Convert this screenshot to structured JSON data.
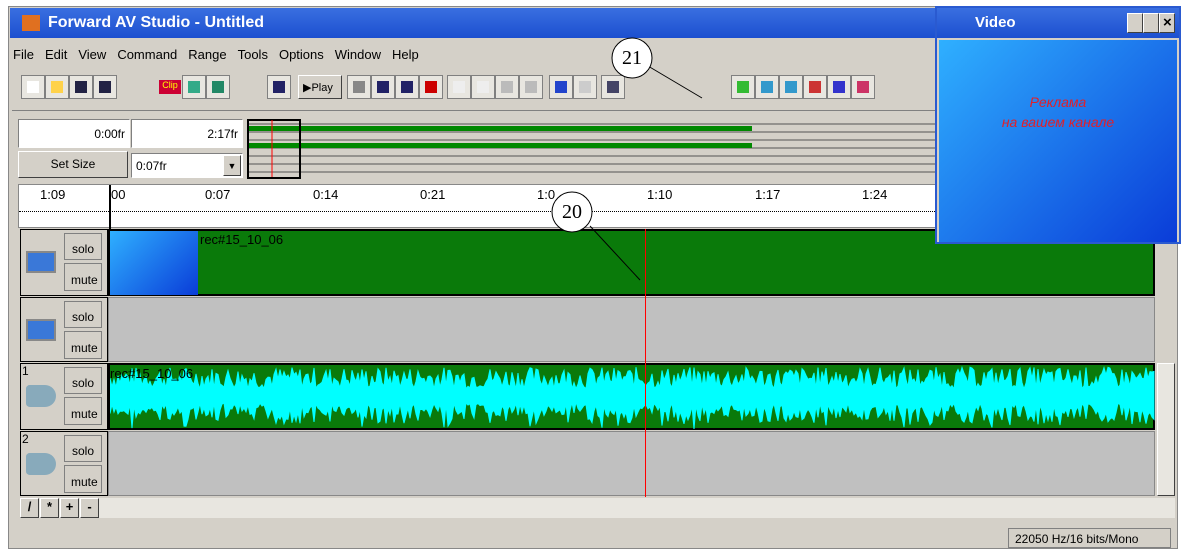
{
  "window": {
    "title": "Forward AV Studio - Untitled"
  },
  "menu": [
    "File",
    "Edit",
    "View",
    "Command",
    "Range",
    "Tools",
    "Options",
    "Window",
    "Help"
  ],
  "toolbar": {
    "clip": "Clip",
    "play": "Play"
  },
  "callouts": [
    "21",
    "20"
  ],
  "range": {
    "start": "0:00fr",
    "end": "2:17fr",
    "set_size": "Set Size",
    "size": "0:07fr"
  },
  "ruler": {
    "left": "1:09",
    "ticks": [
      "00",
      "0:07",
      "0:14",
      "0:21",
      "1:0",
      "1:10",
      "1:17",
      "1:24"
    ]
  },
  "tracks": [
    {
      "solo": "solo",
      "mute": "mute",
      "clip": "rec#15_10_06"
    },
    {
      "solo": "solo",
      "mute": "mute"
    },
    {
      "number": "1",
      "solo": "solo",
      "mute": "mute",
      "clip": "rec#15_10_06"
    },
    {
      "number": "2",
      "solo": "solo",
      "mute": "mute"
    }
  ],
  "track_buttons": [
    "/",
    "*",
    "+",
    "-"
  ],
  "status": "22050 Hz/16 bits/Mono",
  "video": {
    "title": "Video",
    "text": [
      "Реклама",
      "на вашем канале"
    ]
  }
}
